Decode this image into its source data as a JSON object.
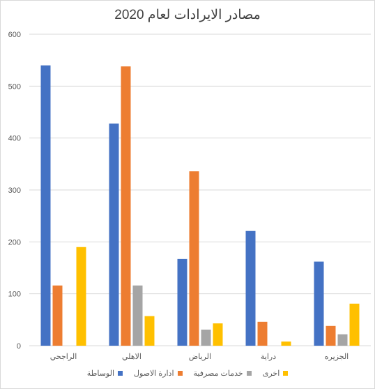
{
  "chart_data": {
    "type": "bar",
    "title": "مصادر الايرادات لعام 2020",
    "categories": [
      "الراجحي",
      "الاهلي",
      "الرياض",
      "دراية",
      "الجزيره"
    ],
    "ylim": [
      0,
      600
    ],
    "yticks": [
      0,
      100,
      200,
      300,
      400,
      500,
      600
    ],
    "grid": true,
    "legend_position": "bottom",
    "series": [
      {
        "name": "الوساطة",
        "color": "#4472C4",
        "values": [
          540,
          428,
          167,
          221,
          162
        ]
      },
      {
        "name": "ادارة الاصول",
        "color": "#ED7D31",
        "values": [
          116,
          538,
          336,
          46,
          38
        ]
      },
      {
        "name": "خدمات مصرفية",
        "color": "#A5A5A5",
        "values": [
          0,
          116,
          31,
          0,
          22
        ]
      },
      {
        "name": "اخرى",
        "color": "#FFC000",
        "values": [
          190,
          57,
          43,
          8,
          81
        ]
      }
    ]
  }
}
